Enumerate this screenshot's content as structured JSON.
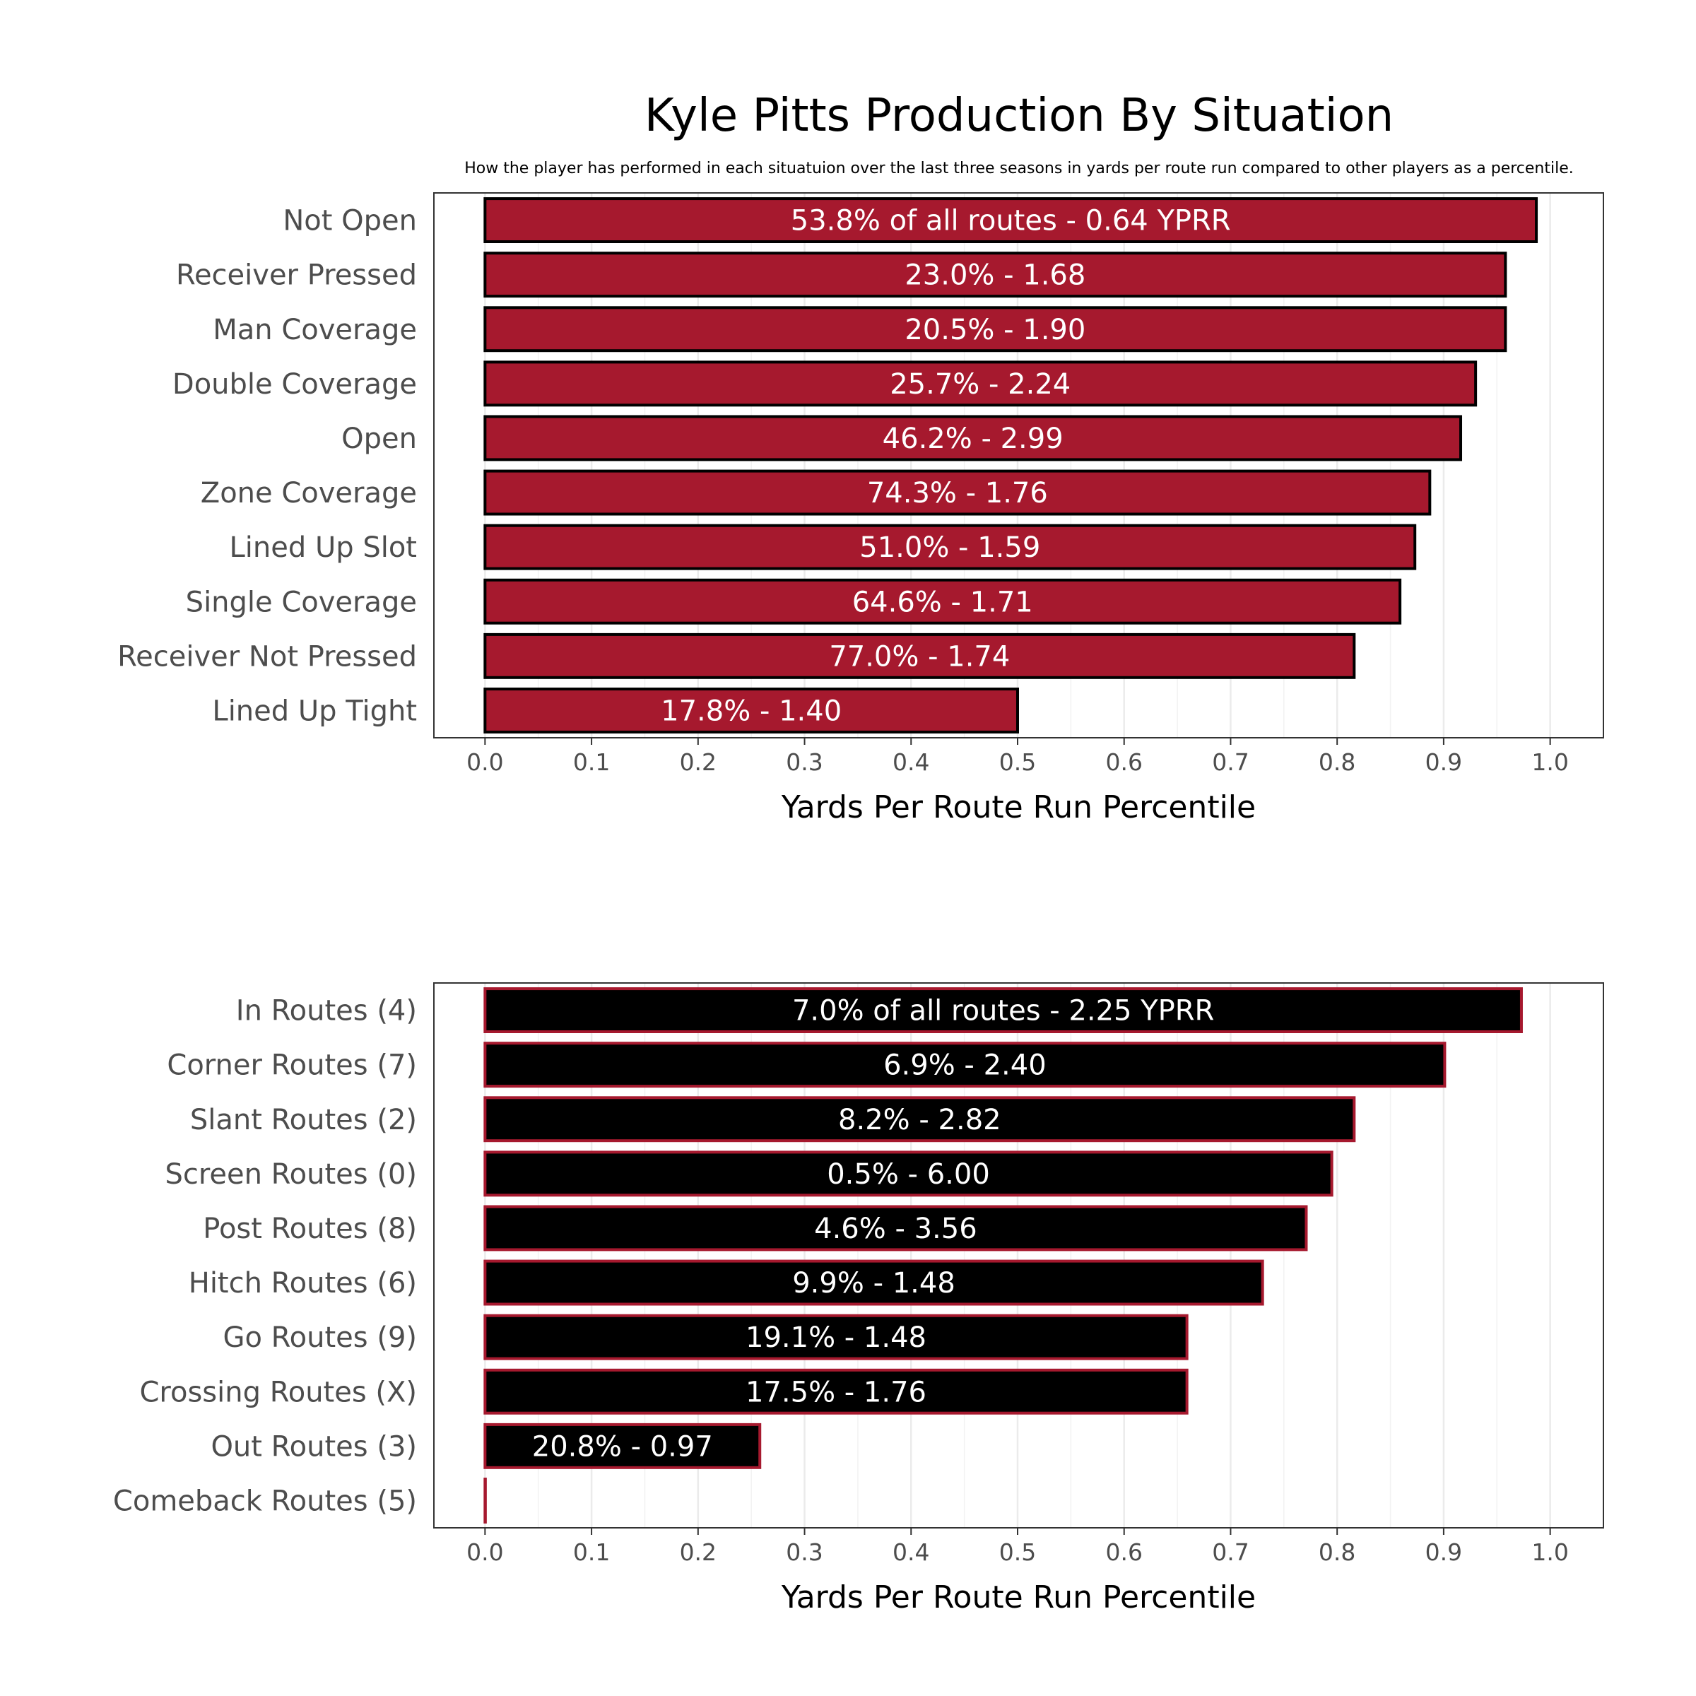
{
  "title": "Kyle Pitts Production By Situation",
  "subtitle": "How the player has performed in each situatuion over the last three seasons in yards per route run compared to other players as a percentile.",
  "colors": {
    "bar_fill_top": "#a6192e",
    "bar_stroke_top": "#000000",
    "bar_fill_bottom": "#000000",
    "bar_stroke_bottom": "#a6192e",
    "label_text": "#ffffff",
    "category_text": "#4d4d4d"
  },
  "chart_data": [
    {
      "type": "bar",
      "orientation": "horizontal",
      "xlabel": "Yards Per Route Run Percentile",
      "ylabel": "",
      "xlim": [
        -0.048,
        1.05
      ],
      "xticks": [
        0.0,
        0.1,
        0.2,
        0.3,
        0.4,
        0.5,
        0.6,
        0.7,
        0.8,
        0.9,
        1.0
      ],
      "xtick_labels": [
        "0.0",
        "0.1",
        "0.2",
        "0.3",
        "0.4",
        "0.5",
        "0.6",
        "0.7",
        "0.8",
        "0.9",
        "1.0"
      ],
      "categories": [
        "Not Open",
        "Receiver Pressed",
        "Man Coverage",
        "Double Coverage",
        "Open",
        "Zone Coverage",
        "Lined Up Slot",
        "Single Coverage",
        "Receiver Not Pressed",
        "Lined Up Tight"
      ],
      "values": [
        0.987,
        0.958,
        0.958,
        0.93,
        0.916,
        0.887,
        0.873,
        0.859,
        0.816,
        0.5
      ],
      "bar_labels": [
        "53.8% of all routes - 0.64 YPRR",
        "23.0% - 1.68",
        "20.5% - 1.90",
        "25.7% - 2.24",
        "46.2% - 2.99",
        "74.3% - 1.76",
        "51.0% - 1.59",
        "64.6% - 1.71",
        "77.0% - 1.74",
        "17.8% - 1.40"
      ]
    },
    {
      "type": "bar",
      "orientation": "horizontal",
      "xlabel": "Yards Per Route Run Percentile",
      "ylabel": "",
      "xlim": [
        -0.048,
        1.05
      ],
      "xticks": [
        0.0,
        0.1,
        0.2,
        0.3,
        0.4,
        0.5,
        0.6,
        0.7,
        0.8,
        0.9,
        1.0
      ],
      "xtick_labels": [
        "0.0",
        "0.1",
        "0.2",
        "0.3",
        "0.4",
        "0.5",
        "0.6",
        "0.7",
        "0.8",
        "0.9",
        "1.0"
      ],
      "categories": [
        "In Routes (4)",
        "Corner Routes (7)",
        "Slant Routes (2)",
        "Screen Routes (0)",
        "Post Routes (8)",
        "Hitch Routes (6)",
        "Go Routes (9)",
        "Crossing Routes (X)",
        "Out Routes (3)",
        "Comeback Routes (5)"
      ],
      "values": [
        0.973,
        0.901,
        0.816,
        0.795,
        0.771,
        0.73,
        0.659,
        0.659,
        0.258,
        0.0
      ],
      "bar_labels": [
        "7.0% of all routes - 2.25 YPRR",
        "6.9% - 2.40",
        "8.2% - 2.82",
        "0.5% - 6.00",
        "4.6% - 3.56",
        "9.9% - 1.48",
        "19.1% - 1.48",
        "17.5% - 1.76",
        "20.8% - 0.97",
        ""
      ]
    }
  ]
}
